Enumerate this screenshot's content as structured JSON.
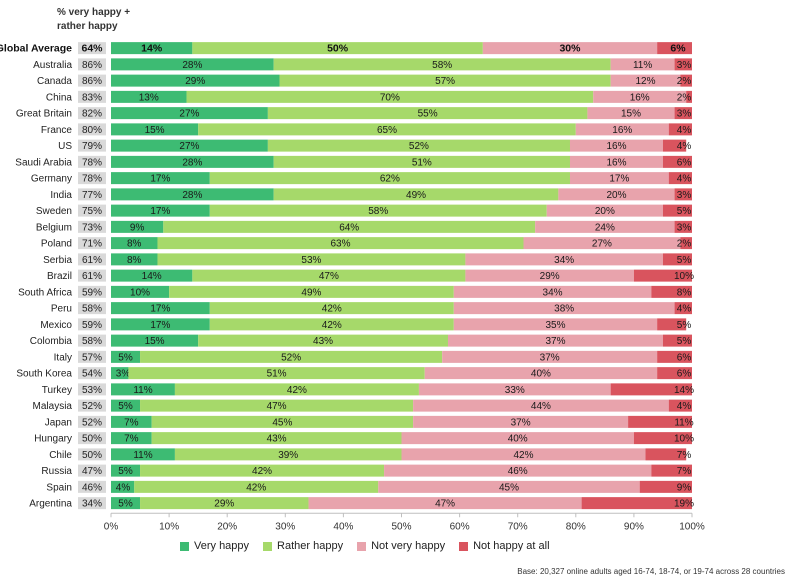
{
  "header": {
    "line1": "% very happy +",
    "line2": "rather happy"
  },
  "chart_data": {
    "type": "bar",
    "orientation": "horizontal",
    "stacked": true,
    "xlim": [
      0,
      100
    ],
    "x_ticks": [
      "0%",
      "10%",
      "20%",
      "30%",
      "40%",
      "50%",
      "60%",
      "70%",
      "80%",
      "90%",
      "100%"
    ],
    "colors": {
      "very_happy": "#3dbb73",
      "rather_happy": "#a6d96a",
      "not_very_happy": "#e8a3ac",
      "not_at_all": "#d9545e",
      "pct_box": "#d9d9d9"
    },
    "series_names": [
      "Very happy",
      "Rather happy",
      "Not very happy",
      "Not happy at all"
    ],
    "rows": [
      {
        "name": "Global Average",
        "happy_total": "64%",
        "values": [
          14,
          50,
          30,
          6
        ],
        "bold": true
      },
      {
        "name": "Australia",
        "happy_total": "86%",
        "values": [
          28,
          58,
          11,
          3
        ]
      },
      {
        "name": "Canada",
        "happy_total": "86%",
        "values": [
          29,
          57,
          12,
          2
        ]
      },
      {
        "name": "China",
        "happy_total": "83%",
        "values": [
          13,
          70,
          16,
          2
        ]
      },
      {
        "name": "Great Britain",
        "happy_total": "82%",
        "values": [
          27,
          55,
          15,
          3
        ]
      },
      {
        "name": "France",
        "happy_total": "80%",
        "values": [
          15,
          65,
          16,
          4
        ]
      },
      {
        "name": "US",
        "happy_total": "79%",
        "values": [
          27,
          52,
          16,
          4
        ]
      },
      {
        "name": "Saudi Arabia",
        "happy_total": "78%",
        "values": [
          28,
          51,
          16,
          6
        ]
      },
      {
        "name": "Germany",
        "happy_total": "78%",
        "values": [
          17,
          62,
          17,
          4
        ]
      },
      {
        "name": "India",
        "happy_total": "77%",
        "values": [
          28,
          49,
          20,
          3
        ]
      },
      {
        "name": "Sweden",
        "happy_total": "75%",
        "values": [
          17,
          58,
          20,
          5
        ]
      },
      {
        "name": "Belgium",
        "happy_total": "73%",
        "values": [
          9,
          64,
          24,
          3
        ]
      },
      {
        "name": "Poland",
        "happy_total": "71%",
        "values": [
          8,
          63,
          27,
          2
        ]
      },
      {
        "name": "Serbia",
        "happy_total": "61%",
        "values": [
          8,
          53,
          34,
          5
        ]
      },
      {
        "name": "Brazil",
        "happy_total": "61%",
        "values": [
          14,
          47,
          29,
          10
        ]
      },
      {
        "name": "South Africa",
        "happy_total": "59%",
        "values": [
          10,
          49,
          34,
          8
        ]
      },
      {
        "name": "Peru",
        "happy_total": "58%",
        "values": [
          17,
          42,
          38,
          4
        ]
      },
      {
        "name": "Mexico",
        "happy_total": "59%",
        "values": [
          17,
          42,
          35,
          5
        ]
      },
      {
        "name": "Colombia",
        "happy_total": "58%",
        "values": [
          15,
          43,
          37,
          5
        ]
      },
      {
        "name": "Italy",
        "happy_total": "57%",
        "values": [
          5,
          52,
          37,
          6
        ]
      },
      {
        "name": "South Korea",
        "happy_total": "54%",
        "values": [
          3,
          51,
          40,
          6
        ]
      },
      {
        "name": "Turkey",
        "happy_total": "53%",
        "values": [
          11,
          42,
          33,
          14
        ]
      },
      {
        "name": "Malaysia",
        "happy_total": "52%",
        "values": [
          5,
          47,
          44,
          4
        ]
      },
      {
        "name": "Japan",
        "happy_total": "52%",
        "values": [
          7,
          45,
          37,
          11
        ]
      },
      {
        "name": "Hungary",
        "happy_total": "50%",
        "values": [
          7,
          43,
          40,
          10
        ]
      },
      {
        "name": "Chile",
        "happy_total": "50%",
        "values": [
          11,
          39,
          42,
          7
        ]
      },
      {
        "name": "Russia",
        "happy_total": "47%",
        "values": [
          5,
          42,
          46,
          7
        ]
      },
      {
        "name": "Spain",
        "happy_total": "46%",
        "values": [
          4,
          42,
          45,
          9
        ]
      },
      {
        "name": "Argentina",
        "happy_total": "34%",
        "values": [
          5,
          29,
          47,
          19
        ]
      }
    ]
  },
  "legend": {
    "very_happy": "Very happy",
    "rather_happy": "Rather happy",
    "not_very_happy": "Not very happy",
    "not_at_all": "Not happy at all"
  },
  "footnote": "Base: 20,327 online adults aged 16-74, 18-74, or 19-74 across 28 countries"
}
